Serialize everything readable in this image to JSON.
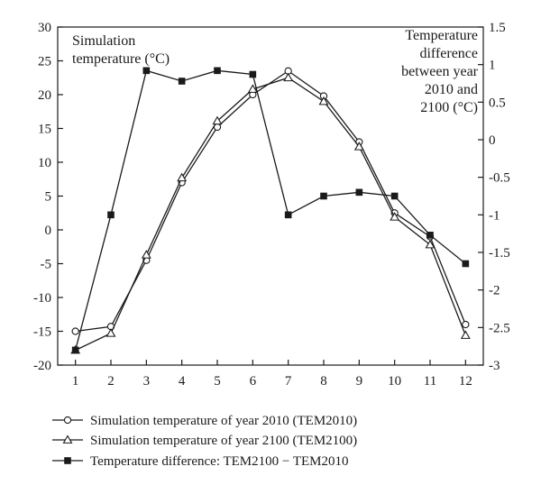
{
  "chart_data": {
    "type": "line",
    "x": [
      1,
      2,
      3,
      4,
      5,
      6,
      7,
      8,
      9,
      10,
      11,
      12
    ],
    "xticks": [
      "1",
      "2",
      "3",
      "4",
      "5",
      "6",
      "7",
      "8",
      "9",
      "10",
      "11",
      "12"
    ],
    "xlim": [
      0.5,
      12.5
    ],
    "y_left": {
      "label_lines": [
        "Simulation",
        "temperature (°C)"
      ],
      "lim": [
        -20,
        30
      ],
      "ticks": [
        "30",
        "25",
        "20",
        "15",
        "10",
        "5",
        "0",
        "-5",
        "-10",
        "-15",
        "-20"
      ]
    },
    "y_right": {
      "label_lines": [
        "Temperature",
        "difference",
        "between year",
        "2010 and",
        "2100 (°C)"
      ],
      "lim": [
        -3,
        1.5
      ],
      "ticks": [
        "1.5",
        "1",
        "0.5",
        "0",
        "-0.5",
        "-1",
        "-1.5",
        "-2",
        "-2.5",
        "-3"
      ]
    },
    "series": [
      {
        "name": "Simulation temperature of year 2010 (TEM2010)",
        "axis": "left",
        "marker": "circle",
        "values": [
          -15.0,
          -14.3,
          -4.5,
          7.0,
          15.2,
          20.0,
          23.5,
          19.8,
          13.0,
          2.5,
          -1.0,
          -14.0
        ]
      },
      {
        "name": "Simulation temperature of year 2100 (TEM2100)",
        "axis": "left",
        "marker": "triangle",
        "values": [
          -17.8,
          -15.3,
          -3.7,
          7.7,
          16.1,
          20.8,
          22.5,
          19.0,
          12.3,
          1.9,
          -2.2,
          -15.6
        ]
      },
      {
        "name": "Temperature difference: TEM2100 − TEM2010",
        "axis": "right",
        "marker": "square",
        "values": [
          -2.8,
          -1.0,
          0.92,
          0.78,
          0.92,
          0.87,
          -1.0,
          -0.75,
          -0.7,
          -0.75,
          -1.27,
          -1.65
        ]
      }
    ],
    "legend_position": "bottom",
    "grid": false
  }
}
